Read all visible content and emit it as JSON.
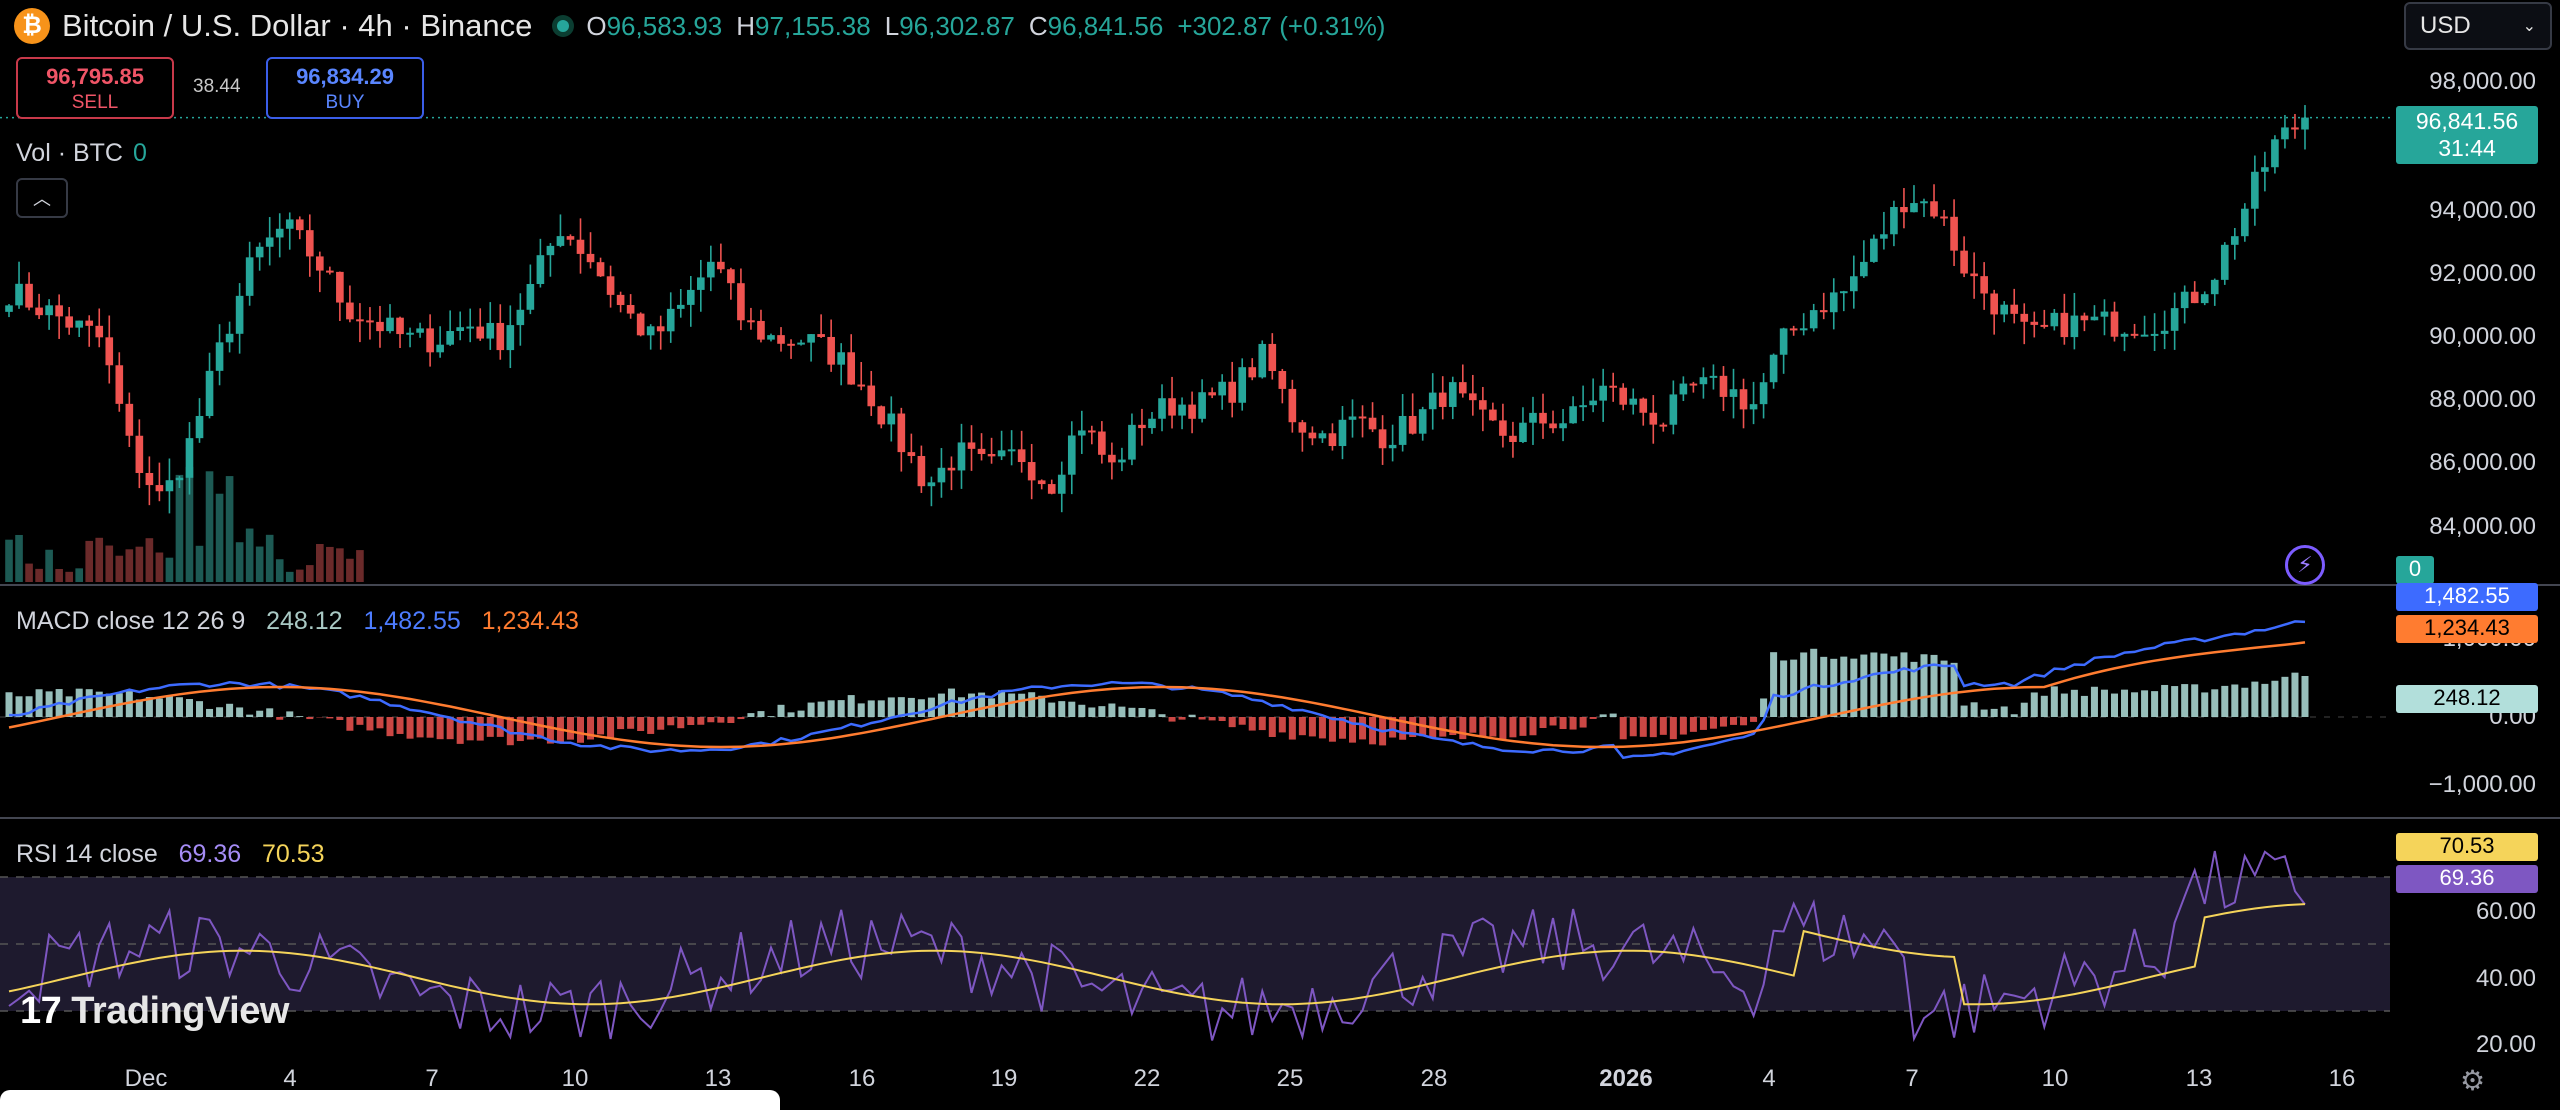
{
  "header": {
    "coin_icon": "bitcoin-icon",
    "title": "Bitcoin / U.S. Dollar · 4h · Binance",
    "ohlc": [
      {
        "k": "O",
        "v": "96,583.93"
      },
      {
        "k": "H",
        "v": "97,155.38"
      },
      {
        "k": "L",
        "v": "96,302.87"
      },
      {
        "k": "C",
        "v": "96,841.56"
      }
    ],
    "change": "+302.87 (+0.31%)"
  },
  "currency": {
    "value": "USD"
  },
  "trade": {
    "sell_price": "96,795.85",
    "sell_label": "SELL",
    "spread": "38.44",
    "buy_price": "96,834.29",
    "buy_label": "BUY"
  },
  "volume": {
    "label": "Vol · BTC",
    "value": "0"
  },
  "macd": {
    "label": "MACD close 12 26 9",
    "hist": "248.12",
    "macd": "1,482.55",
    "signal": "1,234.43"
  },
  "rsi": {
    "label": "RSI 14 close",
    "rsi": "69.36",
    "ma": "70.53"
  },
  "price_axis": [
    "98,000.00",
    "94,000.00",
    "92,000.00",
    "90,000.00",
    "88,000.00",
    "86,000.00",
    "84,000.00"
  ],
  "last_price": {
    "price": "96,841.56",
    "countdown": "31:44"
  },
  "volume_tag": "0",
  "macd_axis": [
    "1,000.00",
    "0.00",
    "−1,000.00"
  ],
  "macd_tags": {
    "macd": "1,482.55",
    "signal": "1,234.43",
    "hist": "248.12"
  },
  "rsi_axis": [
    "60.00",
    "40.00",
    "20.00"
  ],
  "rsi_tags": {
    "ma": "70.53",
    "rsi": "69.36"
  },
  "dates": [
    "Dec",
    "4",
    "7",
    "10",
    "13",
    "16",
    "19",
    "22",
    "25",
    "28",
    "2026",
    "4",
    "7",
    "10",
    "13",
    "16"
  ],
  "brand": "TradingView",
  "colors": {
    "up": "#26a69a",
    "down": "#ef5350",
    "macd": "#3d6bff",
    "signal": "#ff7c30",
    "rsi": "#7e57c2",
    "rsi_ma": "#f5d45a"
  },
  "chart_data": {
    "type": "candlestick",
    "price_axis": {
      "min": 84000,
      "max": 98000
    },
    "close_path": [
      91500,
      91000,
      90500,
      90000,
      86500,
      85000,
      87000,
      90000,
      92500,
      93500,
      92500,
      91000,
      90500,
      90000,
      90000,
      90500,
      90000,
      91500,
      93500,
      92500,
      91000,
      90000,
      91000,
      92500,
      90500,
      90000,
      90000,
      89500,
      88500,
      87000,
      85500,
      86500,
      86000,
      86500,
      85500,
      87500,
      86000,
      87500,
      88000,
      88000,
      88500,
      89500,
      87500,
      87000,
      87500,
      87000,
      87500,
      88500,
      87500,
      87000,
      87500,
      87500,
      88500,
      88000,
      87500,
      88500,
      88500,
      88000,
      90000,
      91000,
      91500,
      93000,
      94500,
      94000,
      92000,
      91000,
      90000,
      90500,
      90500,
      90500,
      90500,
      91000,
      92000,
      94000,
      96000,
      96841.56
    ],
    "macd_range": [
      -1500,
      1500
    ],
    "rsi_range": [
      20,
      80
    ]
  }
}
